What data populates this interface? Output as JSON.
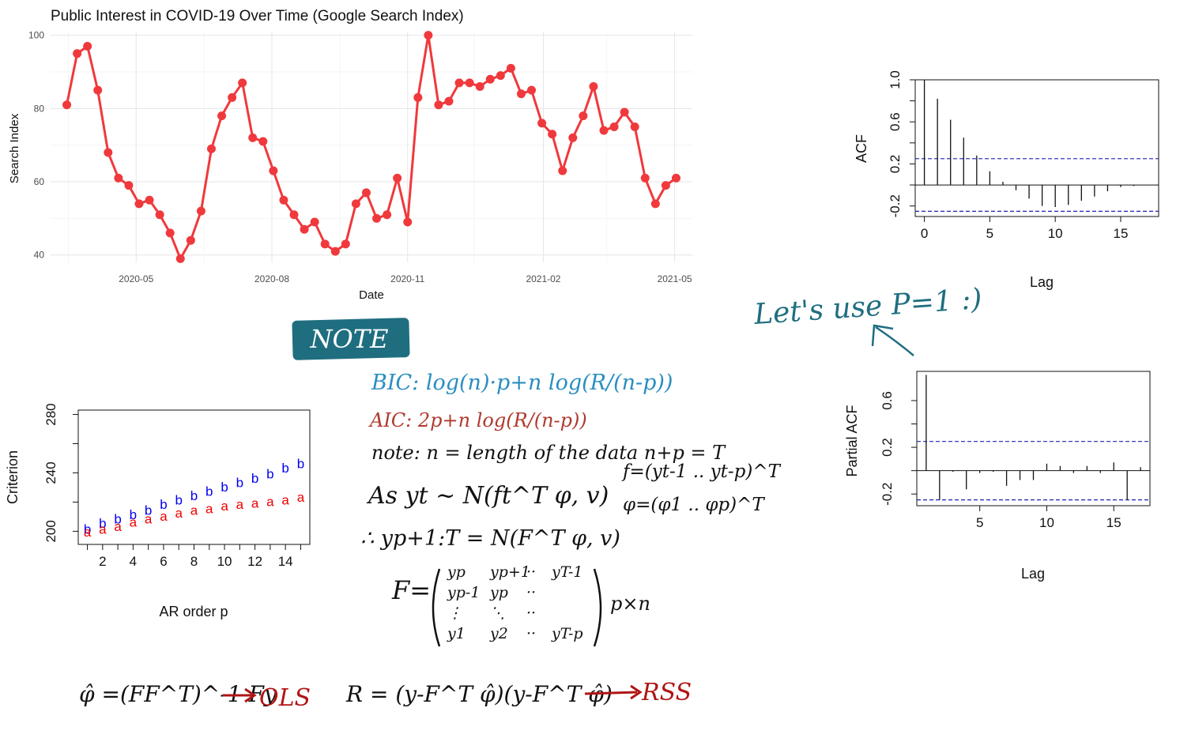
{
  "chart_data": [
    {
      "type": "line",
      "title": "Public Interest in COVID-19 Over Time (Google Search Index)",
      "xlabel": "Date",
      "ylabel": "Search Index",
      "x_ticks": [
        "2020-05",
        "2020-08",
        "2020-11",
        "2021-02",
        "2021-05"
      ],
      "y_ticks": [
        "40",
        "60",
        "80",
        "100"
      ],
      "ylim": [
        38,
        101
      ],
      "grid": true,
      "color": "#f0393c",
      "x": [
        "2020-03-15",
        "2020-03-22",
        "2020-03-29",
        "2020-04-05",
        "2020-04-12",
        "2020-04-19",
        "2020-04-26",
        "2020-05-03",
        "2020-05-10",
        "2020-05-17",
        "2020-05-24",
        "2020-05-31",
        "2020-06-07",
        "2020-06-14",
        "2020-06-21",
        "2020-06-28",
        "2020-07-05",
        "2020-07-12",
        "2020-07-19",
        "2020-07-26",
        "2020-08-02",
        "2020-08-09",
        "2020-08-16",
        "2020-08-23",
        "2020-08-30",
        "2020-09-06",
        "2020-09-13",
        "2020-09-20",
        "2020-09-27",
        "2020-10-04",
        "2020-10-11",
        "2020-10-18",
        "2020-10-25",
        "2020-11-01",
        "2020-11-08",
        "2020-11-15",
        "2020-11-22",
        "2020-11-29",
        "2020-12-06",
        "2020-12-13",
        "2020-12-20",
        "2020-12-27",
        "2021-01-03",
        "2021-01-10",
        "2021-01-17",
        "2021-01-24",
        "2021-01-31",
        "2021-02-07",
        "2021-02-14",
        "2021-02-21",
        "2021-02-28",
        "2021-03-07",
        "2021-03-14",
        "2021-03-21",
        "2021-03-28",
        "2021-04-04",
        "2021-04-11",
        "2021-04-18",
        "2021-04-25",
        "2021-05-02"
      ],
      "values": [
        81,
        95,
        97,
        85,
        68,
        61,
        59,
        54,
        55,
        51,
        46,
        39,
        44,
        52,
        69,
        78,
        83,
        87,
        72,
        71,
        63,
        55,
        51,
        47,
        49,
        43,
        41,
        43,
        54,
        57,
        50,
        51,
        61,
        49,
        83,
        100,
        81,
        82,
        87,
        87,
        86,
        88,
        89,
        91,
        84,
        85,
        76,
        73,
        63,
        72,
        78,
        86,
        74,
        75,
        79,
        75,
        61,
        54,
        59,
        61
      ]
    },
    {
      "type": "bar",
      "ylabel": "ACF",
      "xlabel": "Lag",
      "x_ticks": [
        "0",
        "5",
        "10",
        "15"
      ],
      "y_ticks": [
        "-0.2",
        "0.2",
        "0.6",
        "1.0"
      ],
      "ylim": [
        -0.3,
        1.0
      ],
      "lags": [
        0,
        1,
        2,
        3,
        4,
        5,
        6,
        7,
        8,
        9,
        10,
        11,
        12,
        13,
        14,
        15,
        16
      ],
      "values": [
        1.0,
        0.82,
        0.62,
        0.45,
        0.28,
        0.13,
        0.03,
        -0.05,
        -0.13,
        -0.2,
        -0.21,
        -0.19,
        -0.15,
        -0.11,
        -0.06,
        -0.02,
        -0.01
      ],
      "ci": 0.25
    },
    {
      "type": "bar",
      "ylabel": "Partial ACF",
      "xlabel": "Lag",
      "x_ticks": [
        "5",
        "10",
        "15"
      ],
      "y_ticks": [
        "-0.2",
        "0.2",
        "0.6"
      ],
      "ylim": [
        -0.3,
        0.85
      ],
      "lags": [
        1,
        2,
        3,
        4,
        5,
        6,
        7,
        8,
        9,
        10,
        11,
        12,
        13,
        14,
        15,
        16,
        17
      ],
      "values": [
        0.82,
        -0.25,
        -0.01,
        -0.16,
        -0.02,
        -0.01,
        -0.13,
        -0.08,
        -0.08,
        0.06,
        0.04,
        -0.02,
        0.04,
        -0.02,
        0.07,
        -0.25,
        0.03
      ],
      "ci": 0.25
    },
    {
      "type": "scatter",
      "xlabel": "AR order p",
      "ylabel": "Criterion",
      "x_ticks": [
        "2",
        "4",
        "6",
        "8",
        "10",
        "12",
        "14"
      ],
      "y_ticks": [
        "200",
        "240",
        "280"
      ],
      "ylim": [
        191,
        283
      ],
      "x": [
        1,
        2,
        3,
        4,
        5,
        6,
        7,
        8,
        9,
        10,
        11,
        12,
        13,
        14,
        15
      ],
      "series": [
        {
          "marker": "b",
          "color": "#0000ee",
          "values": [
            201,
            205,
            208,
            211,
            214,
            218,
            221,
            224,
            227,
            230,
            233,
            236,
            239,
            243,
            246
          ]
        },
        {
          "marker": "a",
          "color": "#ee0000",
          "values": [
            199,
            201,
            203,
            206,
            208,
            210,
            212,
            214,
            215,
            217,
            218,
            219,
            220,
            221,
            223
          ]
        }
      ]
    }
  ],
  "annotations": {
    "note_label": "NOTE",
    "bic": "BIC: log(n)·p+n log(R/(n-p))",
    "aic": "AIC: 2p+n log(R/(n-p))",
    "note_line": "note: n = length of the data   n+p = T",
    "as_line": "As yt ~ N(ft^T φ, v)",
    "f_def": "f=(yt-1 .. yt-p)^T",
    "phi_def": "φ=(φ1 .. φp)^T",
    "y_line": "∴ yp+1:T = N(F^T φ, v)",
    "F_label": "F=",
    "matrix_rows": [
      [
        "yp",
        "yp+1",
        "··",
        "yT-1"
      ],
      [
        "yp-1",
        "yp",
        "··",
        ""
      ],
      [
        "⋮",
        "⋱",
        "··",
        ""
      ],
      [
        "y1",
        "y2",
        "··",
        "yT-p"
      ]
    ],
    "pxn": "p×n",
    "phi_hat": "φ̂ =(FF^T)^-1 Fy",
    "ols": "OLS",
    "R_eq": "R = (y-F^T φ̂)(y-F^T φ̂)",
    "rss": "RSS",
    "lets_use": "Let's use P=1 :)"
  }
}
